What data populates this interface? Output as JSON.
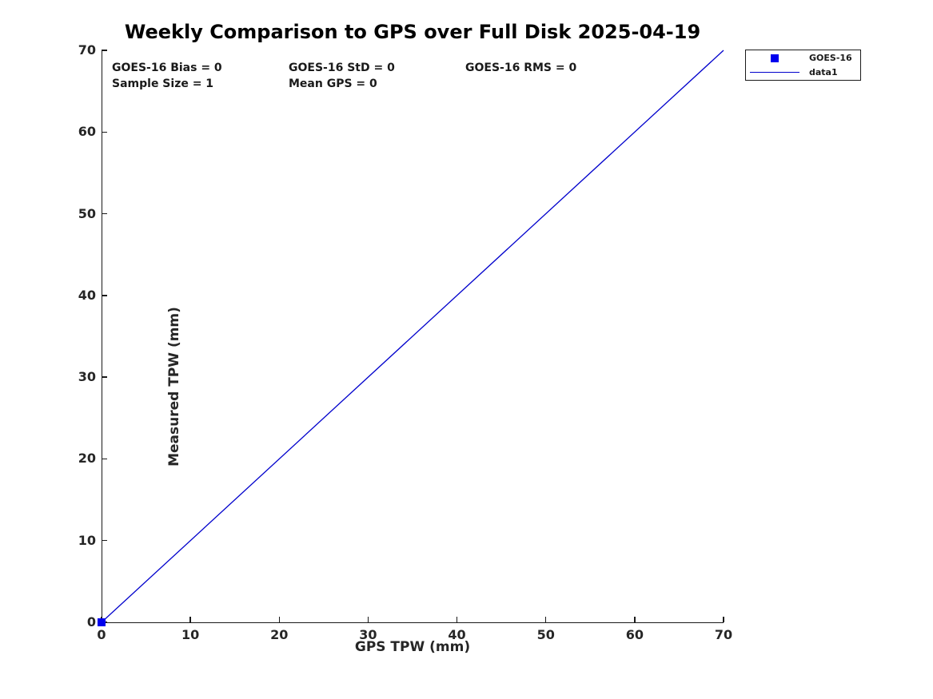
{
  "chart_data": {
    "type": "scatter",
    "title": "Weekly Comparison to GPS over Full Disk 2025-04-19",
    "xlabel": "GPS TPW (mm)",
    "ylabel": "Measured TPW (mm)",
    "xlim": [
      0,
      70
    ],
    "ylim": [
      0,
      70
    ],
    "xticks": [
      0,
      10,
      20,
      30,
      40,
      50,
      60,
      70
    ],
    "yticks": [
      0,
      10,
      20,
      30,
      40,
      50,
      60,
      70
    ],
    "grid": false,
    "legend_position": "outside-top-right",
    "series": [
      {
        "name": "GOES-16",
        "type": "scatter",
        "marker": "square",
        "color": "#0000EE",
        "points": [
          [
            0,
            0
          ]
        ]
      },
      {
        "name": "data1",
        "type": "line",
        "color": "#0000CC",
        "points": [
          [
            0,
            0
          ],
          [
            70,
            70
          ]
        ]
      }
    ],
    "annotations": [
      "GOES-16 Bias = 0",
      "GOES-16 StD = 0",
      "GOES-16 RMS = 0",
      "Sample Size = 1",
      "Mean GPS = 0"
    ]
  },
  "legend": {
    "entries": [
      {
        "label": "GOES-16",
        "swatch": "square",
        "color": "#0000EE"
      },
      {
        "label": "data1",
        "swatch": "line",
        "color": "#0000CC"
      }
    ]
  },
  "colors": {
    "background": "#FFFFFF",
    "axis": "#1A1A1A",
    "text": "#262626",
    "marker_blue": "#0000EE",
    "line_blue": "#0000CC"
  }
}
